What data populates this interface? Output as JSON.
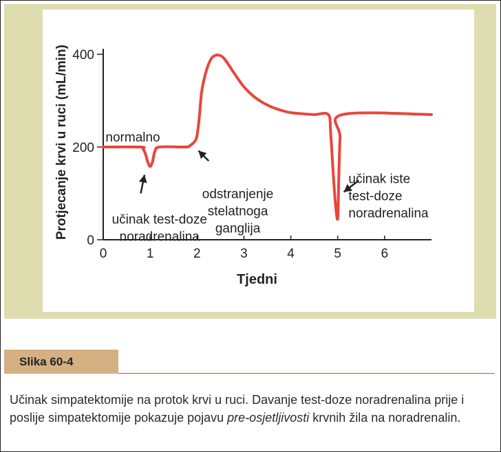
{
  "figure": {
    "caption_label": "Slika 60-4",
    "caption_part1": "Učinak simpatektomije na protok krvi u ruci. Davanje test-doze noradrenalina prije i poslije simpatektomije pokazuje pojavu ",
    "caption_italic": "pre-osjetljivosti",
    "caption_part2": " krvnih žila na noradrenalin."
  },
  "colors": {
    "panel": "#ddddb0",
    "curve": "#e8463a",
    "axis": "#222222",
    "caption_bar": "#d4b083"
  },
  "chart_data": {
    "type": "line",
    "xlabel": "Tjedni",
    "ylabel": "Protjecanje krvi u ruci (mL/min)",
    "xlim": [
      0,
      7
    ],
    "ylim": [
      0,
      400
    ],
    "x_ticks": [
      "0",
      "1",
      "2",
      "3",
      "4",
      "5",
      "6"
    ],
    "y_ticks": [
      "0",
      "200",
      "400"
    ],
    "grid": false,
    "series": [
      {
        "x": [
          0,
          0.8,
          0.85,
          0.9,
          0.95,
          1.0,
          1.05,
          1.1,
          1.2,
          1.75,
          1.85,
          1.95,
          2.0,
          2.05,
          2.1,
          2.2,
          2.3,
          2.4,
          2.5,
          2.6,
          2.8,
          3.0,
          3.2,
          3.4,
          3.6,
          3.8,
          4.0,
          4.2,
          4.5,
          4.8,
          4.85,
          4.9,
          4.95,
          5.0,
          5.02,
          5.05,
          5.1,
          7.0
        ],
        "y": [
          200,
          200,
          196,
          185,
          168,
          158,
          168,
          190,
          200,
          200,
          203,
          212,
          225,
          265,
          320,
          365,
          390,
          398,
          397,
          388,
          358,
          330,
          310,
          296,
          286,
          279,
          274,
          272,
          270,
          270,
          230,
          150,
          80,
          45,
          120,
          220,
          270,
          270
        ]
      }
    ],
    "annotations": [
      {
        "text": "normalno"
      },
      {
        "text": "učinak test-doze noradrenalina",
        "lines": [
          "učinak test-doze",
          "noradrenalina"
        ]
      },
      {
        "text": "odstranjenje stelatnoga ganglija",
        "lines": [
          "odstranjenje",
          "stelatnoga",
          "ganglija"
        ]
      },
      {
        "text": "učinak iste test-doze noradrenalina",
        "lines": [
          "učinak iste",
          "test-doze",
          "noradrenalina"
        ]
      }
    ]
  }
}
